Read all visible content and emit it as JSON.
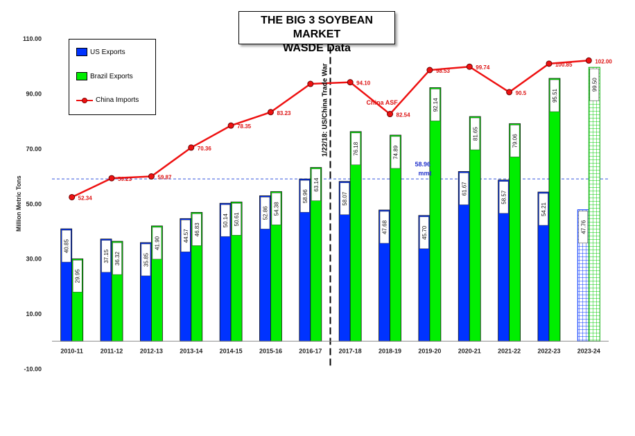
{
  "chart_data": {
    "type": "bar",
    "title": [
      "THE BIG 3 SOYBEAN MARKET",
      "WASDE Data"
    ],
    "ylabel": "Million Metric Tons",
    "ylim": [
      -10,
      110
    ],
    "yticks": [
      "110.00",
      "90.00",
      "70.00",
      "50.00",
      "30.00",
      "10.00",
      "-10.00"
    ],
    "categories": [
      "2010-11",
      "2011-12",
      "2012-13",
      "2013-14",
      "2014-15",
      "2015-16",
      "2016-17",
      "2017-18",
      "2018-19",
      "2019-20",
      "2020-21",
      "2021-22",
      "2022-23",
      "2023-24"
    ],
    "series": [
      {
        "name": "US Exports",
        "type": "bar",
        "color": "#0033ff",
        "values": [
          40.85,
          37.15,
          35.85,
          44.57,
          50.14,
          52.86,
          58.96,
          58.07,
          47.68,
          45.7,
          61.67,
          58.57,
          54.21,
          47.76
        ],
        "labels": [
          "40.85",
          "37.15",
          "35.85",
          "44.57",
          "50.14",
          "52.86",
          "58.96",
          "58.07",
          "47.68",
          "45.70",
          "61.67",
          "58.57",
          "54.21",
          "47.76"
        ]
      },
      {
        "name": "Brazil Exports",
        "type": "bar",
        "color": "#00ee00",
        "values": [
          29.95,
          36.32,
          41.9,
          46.83,
          50.61,
          54.38,
          63.14,
          76.18,
          74.89,
          92.14,
          81.65,
          79.06,
          95.51,
          99.5
        ],
        "labels": [
          "29.95",
          "36.32",
          "41.90",
          "46.83",
          "50.61",
          "54.38",
          "63.14",
          "76.18",
          "74.89",
          "92.14",
          "81.65",
          "79.06",
          "95.51",
          "99.50"
        ]
      },
      {
        "name": "China Imports",
        "type": "line",
        "color": "#ee1111",
        "values": [
          52.34,
          59.23,
          59.87,
          70.36,
          78.35,
          83.23,
          93.5,
          94.1,
          82.54,
          98.53,
          99.74,
          90.5,
          100.85,
          102.0
        ],
        "labels": [
          "52.34",
          "59.23",
          "59.87",
          "70.36",
          "78.35",
          "83.23",
          "",
          "94.10",
          "82.54",
          "98.53",
          "99.74",
          "90.5",
          "100.85",
          "102.00"
        ]
      }
    ],
    "projected_category": "2023-24",
    "reference_line": {
      "value": 58.96,
      "label": "58.96",
      "unit": "mmt"
    },
    "event_line": {
      "after_category": "2016-17",
      "label": "1/22/18: US/China Trade War"
    },
    "annotations": [
      {
        "category": "2018-19",
        "text": "China ASF"
      }
    ]
  }
}
